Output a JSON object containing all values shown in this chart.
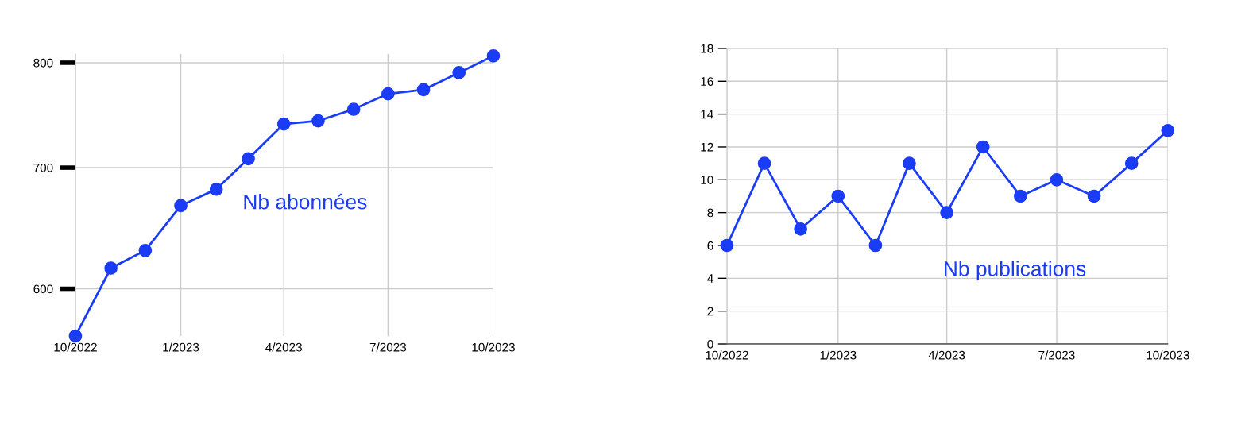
{
  "chart_data": [
    {
      "type": "line",
      "log": "y",
      "grid": true,
      "marker": "circle",
      "line_style": "solid",
      "x": [
        "2022-10",
        "2022-11",
        "2022-12",
        "2023-01",
        "2023-02",
        "2023-03",
        "2023-04",
        "2023-05",
        "2023-06",
        "2023-07",
        "2023-08",
        "2023-09",
        "2023-10"
      ],
      "series": [
        {
          "name": "Nb abonnées",
          "color": "#1a3cf5",
          "values": [
            565,
            616,
            630,
            667,
            681,
            708,
            740,
            743,
            754,
            769,
            773,
            790,
            807
          ]
        }
      ],
      "xlim": [
        "2022-10",
        "2023-10"
      ],
      "xticks": [
        {
          "value": "2022-10",
          "label": "10/2022"
        },
        {
          "value": "2023-01",
          "label": "1/2023"
        },
        {
          "value": "2023-04",
          "label": "4/2023"
        },
        {
          "value": "2023-07",
          "label": "7/2023"
        },
        {
          "value": "2023-10",
          "label": "10/2023"
        }
      ],
      "ylim": [
        565,
        809
      ],
      "yticks": [
        600,
        700,
        800
      ]
    },
    {
      "type": "line",
      "grid": true,
      "marker": "circle",
      "line_style": "solid",
      "x": [
        "2022-10",
        "2022-11",
        "2022-12",
        "2023-01",
        "2023-02",
        "2023-03",
        "2023-04",
        "2023-05",
        "2023-06",
        "2023-07",
        "2023-08",
        "2023-09",
        "2023-10"
      ],
      "series": [
        {
          "name": "Nb publications",
          "color": "#1a3cf5",
          "values": [
            6,
            11,
            7,
            9,
            6,
            11,
            8,
            12,
            9,
            10,
            9,
            11,
            13
          ]
        }
      ],
      "xlim": [
        "2022-10",
        "2023-10"
      ],
      "xticks": [
        {
          "value": "2022-10",
          "label": "10/2022"
        },
        {
          "value": "2023-01",
          "label": "1/2023"
        },
        {
          "value": "2023-04",
          "label": "4/2023"
        },
        {
          "value": "2023-07",
          "label": "7/2023"
        },
        {
          "value": "2023-10",
          "label": "10/2023"
        }
      ],
      "ylim": [
        0,
        18
      ],
      "yticks": [
        0,
        2,
        4,
        6,
        8,
        10,
        12,
        14,
        16,
        18
      ]
    }
  ]
}
